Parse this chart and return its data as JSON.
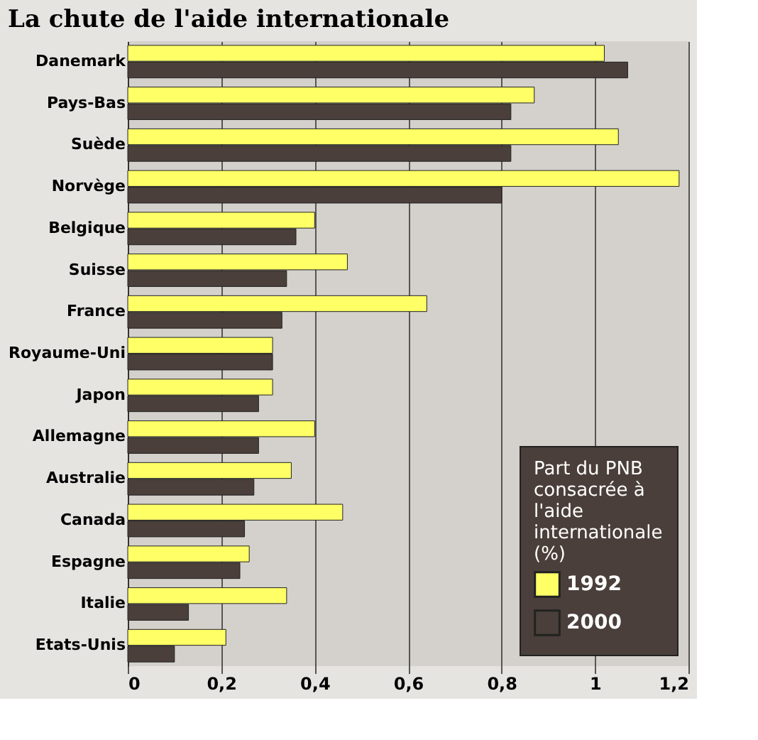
{
  "chart_data": {
    "type": "bar",
    "orientation": "horizontal",
    "title": "La chute de l'aide internationale",
    "legend_title": "Part du PNB consacrée à l'aide internationale (%)",
    "categories": [
      "Danemark",
      "Pays-Bas",
      "Suède",
      "Norvège",
      "Belgique",
      "Suisse",
      "France",
      "Royaume-Uni",
      "Japon",
      "Allemagne",
      "Australie",
      "Canada",
      "Espagne",
      "Italie",
      "Etats-Unis"
    ],
    "series": [
      {
        "name": "1992",
        "color": "#ffff66",
        "values": [
          1.02,
          0.87,
          1.05,
          1.18,
          0.4,
          0.47,
          0.64,
          0.31,
          0.31,
          0.4,
          0.35,
          0.46,
          0.26,
          0.34,
          0.21
        ]
      },
      {
        "name": "2000",
        "color": "#4a3f3a",
        "values": [
          1.07,
          0.82,
          0.82,
          0.8,
          0.36,
          0.34,
          0.33,
          0.31,
          0.28,
          0.28,
          0.27,
          0.25,
          0.24,
          0.13,
          0.1
        ]
      }
    ],
    "xlim": [
      0,
      1.2
    ],
    "xticks": [
      0,
      {
        "value": 0.2,
        "label": "0,2"
      },
      {
        "value": 0.4,
        "label": "0,4"
      },
      {
        "value": 0.6,
        "label": "0,6"
      },
      {
        "value": 0.8,
        "label": "0,8"
      },
      {
        "value": 1,
        "label": "1"
      },
      {
        "value": 1.2,
        "label": "1,2"
      }
    ],
    "grid": "x",
    "legend": "bottom right"
  }
}
